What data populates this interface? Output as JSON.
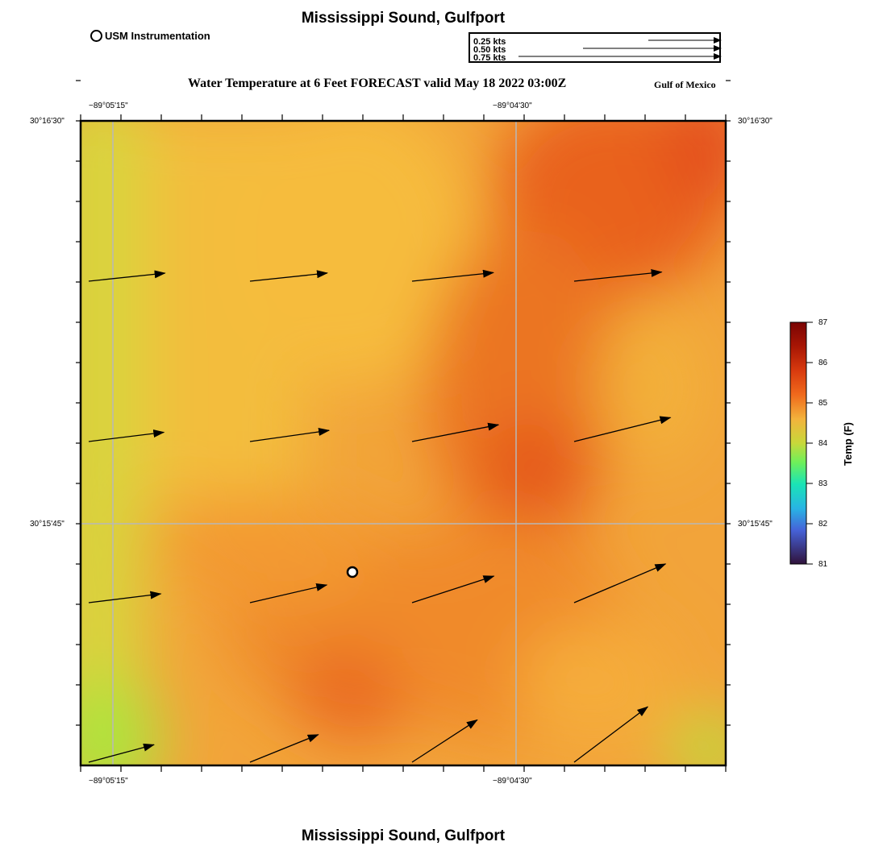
{
  "header": {
    "title": "Mississippi Sound, Gulfport",
    "subtitle": "Water Temperature at 6 Feet FORECAST valid May 18 2022 03:00Z",
    "region_label": "Gulf of Mexico",
    "footer_title": "Mississippi Sound, Gulfport"
  },
  "legend": {
    "station_label": "USM Instrumentation",
    "vector_scale": [
      {
        "label": "0.25 kts",
        "speed_kts": 0.25
      },
      {
        "label": "0.50 kts",
        "speed_kts": 0.5
      },
      {
        "label": "0.75 kts",
        "speed_kts": 0.75
      }
    ]
  },
  "axes": {
    "lon_top": [
      "−89°05'15\"",
      "−89°04'30\""
    ],
    "lon_bottom": [
      "−89°05'15\"",
      "−89°04'30\""
    ],
    "lat_left": [
      "30°16'30\"",
      "30°15'45\""
    ],
    "lat_right": [
      "30°16'30\"",
      "30°15'45\""
    ],
    "grid": true
  },
  "colorbar": {
    "title": "Temp (F)",
    "ticks": [
      "87",
      "86",
      "85",
      "84",
      "83",
      "82",
      "81"
    ],
    "colors": [
      "#7a0403",
      "#c42503",
      "#f07a1a",
      "#e0c13a",
      "#a4fc3c",
      "#1ae4b6",
      "#3e9bfe",
      "#4454c4",
      "#30123b"
    ]
  },
  "map_data": {
    "variable": "Water temperature (F)",
    "range_f": [
      81,
      87
    ],
    "vectors": [
      {
        "row": 1,
        "col": 1,
        "dir_deg": 84,
        "speed_kts": 0.75
      },
      {
        "row": 1,
        "col": 2,
        "dir_deg": 84,
        "speed_kts": 0.76
      },
      {
        "row": 1,
        "col": 3,
        "dir_deg": 84,
        "speed_kts": 0.8
      },
      {
        "row": 1,
        "col": 4,
        "dir_deg": 84,
        "speed_kts": 0.86
      },
      {
        "row": 2,
        "col": 1,
        "dir_deg": 83,
        "speed_kts": 0.74
      },
      {
        "row": 2,
        "col": 2,
        "dir_deg": 82,
        "speed_kts": 0.78
      },
      {
        "row": 2,
        "col": 3,
        "dir_deg": 79,
        "speed_kts": 0.86
      },
      {
        "row": 2,
        "col": 4,
        "dir_deg": 76,
        "speed_kts": 0.97
      },
      {
        "row": 3,
        "col": 1,
        "dir_deg": 83,
        "speed_kts": 0.71
      },
      {
        "row": 3,
        "col": 2,
        "dir_deg": 77,
        "speed_kts": 0.77
      },
      {
        "row": 3,
        "col": 3,
        "dir_deg": 72,
        "speed_kts": 0.84
      },
      {
        "row": 3,
        "col": 4,
        "dir_deg": 67,
        "speed_kts": 0.97
      },
      {
        "row": 4,
        "col": 1,
        "dir_deg": 75,
        "speed_kts": 0.66
      },
      {
        "row": 4,
        "col": 2,
        "dir_deg": 68,
        "speed_kts": 0.72
      },
      {
        "row": 4,
        "col": 3,
        "dir_deg": 57,
        "speed_kts": 0.76
      },
      {
        "row": 4,
        "col": 4,
        "dir_deg": 53,
        "speed_kts": 0.9
      }
    ]
  }
}
